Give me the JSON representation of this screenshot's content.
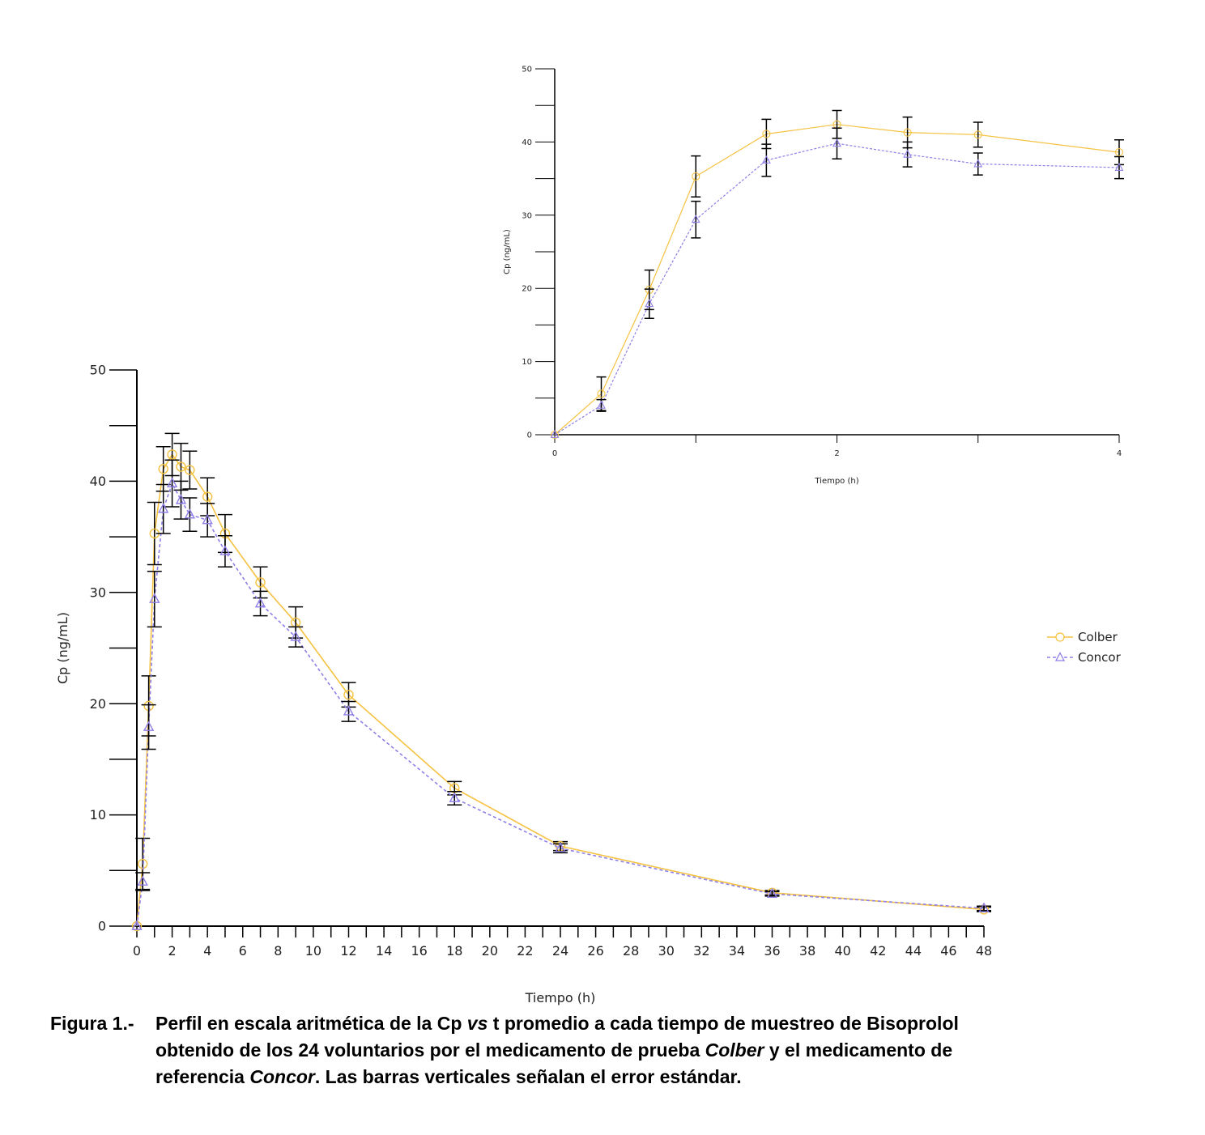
{
  "colors": {
    "colber": "#F5C242",
    "concor": "#8F7FE6"
  },
  "chart_data": [
    {
      "type": "line",
      "title": "",
      "xlabel": "Tiempo (h)",
      "ylabel": "Cp (ng/mL)",
      "xlim": [
        0,
        48
      ],
      "ylim": [
        0,
        50
      ],
      "xticks": [
        "0",
        "2",
        "4",
        "6",
        "8",
        "10",
        "12",
        "14",
        "16",
        "18",
        "20",
        "22",
        "24",
        "26",
        "28",
        "30",
        "32",
        "34",
        "36",
        "38",
        "40",
        "42",
        "44",
        "46",
        "48"
      ],
      "yticks": [
        "0",
        "10",
        "20",
        "30",
        "40",
        "50"
      ],
      "legend": "right",
      "series": [
        {
          "name": "Colber",
          "marker": "circle",
          "line": "solid",
          "x": [
            0,
            0.33,
            0.67,
            1,
            1.5,
            2,
            2.5,
            3,
            4,
            5,
            7,
            9,
            12,
            18,
            24,
            36,
            48
          ],
          "y": [
            0,
            5.6,
            19.8,
            35.3,
            41.1,
            42.4,
            41.3,
            41.0,
            38.6,
            35.3,
            30.9,
            27.3,
            20.8,
            12.4,
            7.2,
            3.0,
            1.5
          ],
          "err": [
            0,
            2.3,
            2.7,
            2.8,
            2.0,
            1.9,
            2.1,
            1.7,
            1.7,
            1.7,
            1.4,
            1.4,
            1.1,
            0.6,
            0.4,
            0.2,
            0.2
          ]
        },
        {
          "name": "Concor",
          "marker": "triangle",
          "line": "dashed",
          "x": [
            0,
            0.33,
            0.67,
            1,
            1.5,
            2,
            2.5,
            3,
            4,
            5,
            7,
            9,
            12,
            18,
            24,
            36,
            48
          ],
          "y": [
            0,
            4.0,
            17.9,
            29.4,
            37.5,
            39.8,
            38.3,
            37.0,
            36.5,
            33.7,
            29.0,
            26.0,
            19.3,
            11.5,
            7.0,
            2.9,
            1.6
          ],
          "err": [
            0,
            0.8,
            2.0,
            2.5,
            2.2,
            2.1,
            1.7,
            1.5,
            1.5,
            1.4,
            1.1,
            0.9,
            0.9,
            0.6,
            0.4,
            0.2,
            0.2
          ]
        }
      ]
    },
    {
      "type": "line",
      "title": "",
      "xlabel": "Tiempo (h)",
      "ylabel": "Cp (ng/mL)",
      "xlim": [
        0,
        4
      ],
      "ylim": [
        0,
        50
      ],
      "xticks": [
        "0",
        "2",
        "4"
      ],
      "yticks": [
        "0",
        "10",
        "20",
        "30",
        "40",
        "50"
      ],
      "series": [
        {
          "name": "Colber",
          "marker": "circle",
          "line": "solid",
          "x": [
            0,
            0.33,
            0.67,
            1,
            1.5,
            2,
            2.5,
            3,
            4
          ],
          "y": [
            0,
            5.6,
            19.8,
            35.3,
            41.1,
            42.4,
            41.3,
            41.0,
            38.6
          ],
          "err": [
            0,
            2.3,
            2.7,
            2.8,
            2.0,
            1.9,
            2.1,
            1.7,
            1.7
          ]
        },
        {
          "name": "Concor",
          "marker": "triangle",
          "line": "dashed",
          "x": [
            0,
            0.33,
            0.67,
            1,
            1.5,
            2,
            2.5,
            3,
            4
          ],
          "y": [
            0,
            4.0,
            17.9,
            29.4,
            37.5,
            39.8,
            38.3,
            37.0,
            36.5
          ],
          "err": [
            0,
            0.8,
            2.0,
            2.5,
            2.2,
            2.1,
            1.7,
            1.5,
            1.5
          ]
        }
      ]
    }
  ],
  "caption": {
    "label": "Figura 1.-",
    "line1_a": "Perfil en escala aritmética de la Cp ",
    "line1_vs": "vs",
    "line1_b": " t promedio a cada tiempo de muestreo de Bisoprolol",
    "line2_a": "obtenido de los 24 voluntarios por el medicamento de prueba ",
    "line2_colber": "Colber",
    "line2_b": " y el medicamento de",
    "line3_a": "referencia ",
    "line3_concor": "Concor",
    "line3_b": ". Las barras verticales señalan el error estándar."
  }
}
